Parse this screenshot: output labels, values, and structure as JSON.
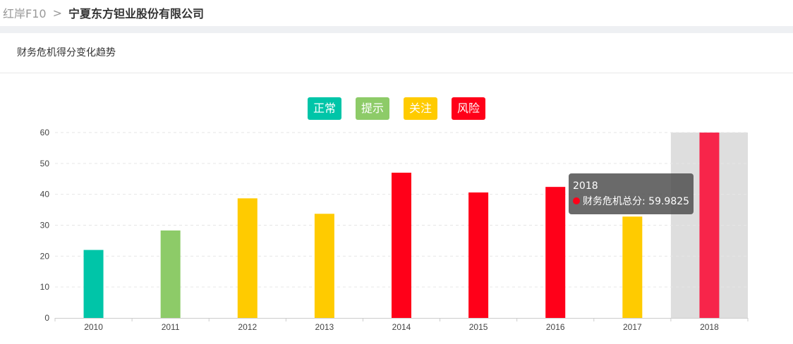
{
  "breadcrumb": {
    "root": "红岸F10",
    "separator": ">",
    "current": "宁夏东方钽业股份有限公司"
  },
  "section": {
    "title": "财务危机得分变化趋势"
  },
  "legend": [
    {
      "label": "正常",
      "color": "#00c5a8"
    },
    {
      "label": "提示",
      "color": "#8dcb68"
    },
    {
      "label": "关注",
      "color": "#ffcb00"
    },
    {
      "label": "风险",
      "color": "#ff0019"
    }
  ],
  "chart_data": {
    "type": "bar",
    "categories": [
      "2010",
      "2011",
      "2012",
      "2013",
      "2014",
      "2015",
      "2016",
      "2017",
      "2018"
    ],
    "series": [
      {
        "values": [
          22,
          28.3,
          38.7,
          33.7,
          47,
          40.6,
          42.4,
          32.8,
          59.9825
        ],
        "colors": [
          "#00c5a8",
          "#8dcb68",
          "#ffcb00",
          "#ffcb00",
          "#ff0019",
          "#ff0019",
          "#ff0019",
          "#ffcb00",
          "#ff0019"
        ]
      }
    ],
    "ylim": [
      0,
      60
    ],
    "yticks": [
      "0",
      "10",
      "20",
      "30",
      "40",
      "50",
      "60"
    ],
    "grid": true,
    "highlight": {
      "category": "2018",
      "bar_color": "#f7254a",
      "band_color": "#dedede"
    }
  },
  "tooltip": {
    "title": "2018",
    "series_label": "财务危机总分",
    "value": "59.9825",
    "dot_color": "#ff0019"
  }
}
